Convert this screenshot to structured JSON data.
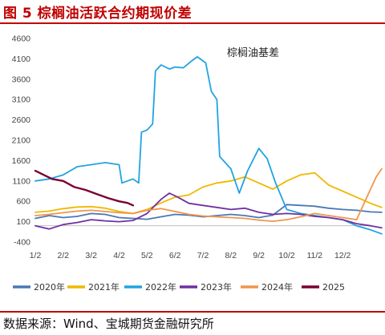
{
  "figure": {
    "title": "图 5 棕榈油活跃合约期现价差",
    "source": "数据来源：Wind、宝城期货金融研究所"
  },
  "chart_data": {
    "type": "line",
    "annotation": "棕榈油基差",
    "x_tick_labels": [
      "1/2",
      "2/2",
      "3/2",
      "4/2",
      "5/2",
      "6/2",
      "7/2",
      "8/2",
      "9/2",
      "10/2",
      "11/2",
      "12/2"
    ],
    "y_ticks": [
      4600,
      4100,
      3600,
      3100,
      2600,
      2100,
      1600,
      1100,
      600,
      100,
      -400
    ],
    "ylim": [
      -400,
      4600
    ],
    "xlim": [
      0,
      12
    ],
    "grid": false,
    "legend_position": "bottom",
    "series": [
      {
        "name": "2020年",
        "color": "#4a78b5",
        "points": [
          [
            0,
            180
          ],
          [
            0.5,
            250
          ],
          [
            1,
            200
          ],
          [
            1.5,
            230
          ],
          [
            2,
            300
          ],
          [
            2.5,
            280
          ],
          [
            3,
            200
          ],
          [
            3.5,
            180
          ],
          [
            4,
            160
          ],
          [
            4.5,
            220
          ],
          [
            5,
            280
          ],
          [
            5.5,
            260
          ],
          [
            6,
            220
          ],
          [
            6.5,
            250
          ],
          [
            7,
            280
          ],
          [
            7.5,
            250
          ],
          [
            8,
            200
          ],
          [
            8.5,
            260
          ],
          [
            9,
            520
          ],
          [
            9.5,
            500
          ],
          [
            10,
            480
          ],
          [
            10.5,
            430
          ],
          [
            11,
            400
          ],
          [
            11.5,
            380
          ],
          [
            12,
            340
          ],
          [
            12.4,
            330
          ]
        ]
      },
      {
        "name": "2021年",
        "color": "#f0b800",
        "points": [
          [
            0,
            330
          ],
          [
            0.5,
            360
          ],
          [
            1,
            420
          ],
          [
            1.5,
            460
          ],
          [
            2,
            470
          ],
          [
            2.5,
            430
          ],
          [
            3,
            350
          ],
          [
            3.5,
            300
          ],
          [
            4,
            400
          ],
          [
            4.5,
            560
          ],
          [
            5,
            700
          ],
          [
            5.5,
            760
          ],
          [
            6,
            950
          ],
          [
            6.5,
            1050
          ],
          [
            7,
            1100
          ],
          [
            7.5,
            1200
          ],
          [
            8,
            1050
          ],
          [
            8.5,
            900
          ],
          [
            9,
            1100
          ],
          [
            9.5,
            1250
          ],
          [
            10,
            1300
          ],
          [
            10.5,
            1000
          ],
          [
            11,
            850
          ],
          [
            11.5,
            700
          ],
          [
            12,
            550
          ],
          [
            12.4,
            450
          ]
        ]
      },
      {
        "name": "2022年",
        "color": "#22a3e0",
        "points": [
          [
            0,
            1100
          ],
          [
            0.5,
            1150
          ],
          [
            1,
            1250
          ],
          [
            1.5,
            1450
          ],
          [
            2,
            1500
          ],
          [
            2.5,
            1550
          ],
          [
            3,
            1500
          ],
          [
            3.1,
            1050
          ],
          [
            3.5,
            1150
          ],
          [
            3.7,
            1050
          ],
          [
            3.8,
            2300
          ],
          [
            4,
            2350
          ],
          [
            4.2,
            2500
          ],
          [
            4.3,
            3800
          ],
          [
            4.5,
            3950
          ],
          [
            4.8,
            3850
          ],
          [
            5,
            3900
          ],
          [
            5.3,
            3880
          ],
          [
            5.6,
            4050
          ],
          [
            5.8,
            4150
          ],
          [
            6.1,
            4000
          ],
          [
            6.3,
            3300
          ],
          [
            6.5,
            3100
          ],
          [
            6.6,
            1700
          ],
          [
            7,
            1400
          ],
          [
            7.3,
            800
          ],
          [
            7.6,
            1350
          ],
          [
            8,
            1900
          ],
          [
            8.3,
            1650
          ],
          [
            8.6,
            1050
          ],
          [
            9,
            400
          ],
          [
            9.5,
            300
          ],
          [
            10,
            250
          ],
          [
            10.5,
            200
          ],
          [
            11,
            150
          ],
          [
            11.5,
            0
          ],
          [
            12,
            -100
          ],
          [
            12.4,
            -200
          ]
        ]
      },
      {
        "name": "2023年",
        "color": "#7030a0",
        "points": [
          [
            0,
            0
          ],
          [
            0.5,
            -80
          ],
          [
            1,
            30
          ],
          [
            1.5,
            80
          ],
          [
            2,
            150
          ],
          [
            2.5,
            120
          ],
          [
            3,
            100
          ],
          [
            3.5,
            130
          ],
          [
            4,
            300
          ],
          [
            4.5,
            650
          ],
          [
            4.8,
            800
          ],
          [
            5.1,
            700
          ],
          [
            5.5,
            550
          ],
          [
            6,
            500
          ],
          [
            6.5,
            450
          ],
          [
            7,
            400
          ],
          [
            7.5,
            430
          ],
          [
            8,
            330
          ],
          [
            8.5,
            280
          ],
          [
            9,
            300
          ],
          [
            9.5,
            280
          ],
          [
            10,
            230
          ],
          [
            10.5,
            200
          ],
          [
            11,
            150
          ],
          [
            11.5,
            50
          ],
          [
            12,
            0
          ],
          [
            12.4,
            -50
          ]
        ]
      },
      {
        "name": "2024年",
        "color": "#f0954c",
        "points": [
          [
            0,
            250
          ],
          [
            0.5,
            280
          ],
          [
            1,
            320
          ],
          [
            1.5,
            360
          ],
          [
            2,
            380
          ],
          [
            2.5,
            350
          ],
          [
            3,
            320
          ],
          [
            3.5,
            300
          ],
          [
            4,
            380
          ],
          [
            4.5,
            420
          ],
          [
            5,
            350
          ],
          [
            5.5,
            280
          ],
          [
            6,
            240
          ],
          [
            6.5,
            220
          ],
          [
            7,
            200
          ],
          [
            7.5,
            180
          ],
          [
            8,
            140
          ],
          [
            8.5,
            110
          ],
          [
            9,
            150
          ],
          [
            9.5,
            220
          ],
          [
            10,
            300
          ],
          [
            10.5,
            250
          ],
          [
            11,
            200
          ],
          [
            11.5,
            150
          ],
          [
            12,
            900
          ],
          [
            12.2,
            1200
          ],
          [
            12.4,
            1400
          ]
        ]
      },
      {
        "name": "2025",
        "color": "#7a0033",
        "points": [
          [
            0,
            1350
          ],
          [
            0.3,
            1250
          ],
          [
            0.6,
            1150
          ],
          [
            1,
            1100
          ],
          [
            1.4,
            950
          ],
          [
            1.8,
            880
          ],
          [
            2.2,
            780
          ],
          [
            2.6,
            680
          ],
          [
            3,
            600
          ],
          [
            3.3,
            560
          ],
          [
            3.5,
            500
          ]
        ]
      }
    ]
  }
}
